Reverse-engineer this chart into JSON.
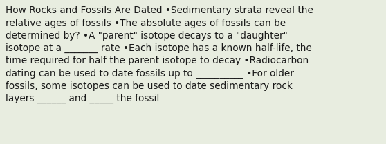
{
  "background_color": "#e8ede0",
  "text_color": "#1a1a1a",
  "font_size": 9.8,
  "text": "How Rocks and Fossils Are Dated •Sedimentary strata reveal the\nrelative ages of fossils •The absolute ages of fossils can be\ndetermined by? •A \"parent\" isotope decays to a \"daughter\"\nisotope at a _______ rate •Each isotope has a known half-life, the\ntime required for half the parent isotope to decay •Radiocarbon\ndating can be used to date fossils up to __________ •For older\nfossils, some isotopes can be used to date sedimentary rock\nlayers ______ and _____ the fossil",
  "fig_width": 5.58,
  "fig_height": 2.09,
  "dpi": 100
}
